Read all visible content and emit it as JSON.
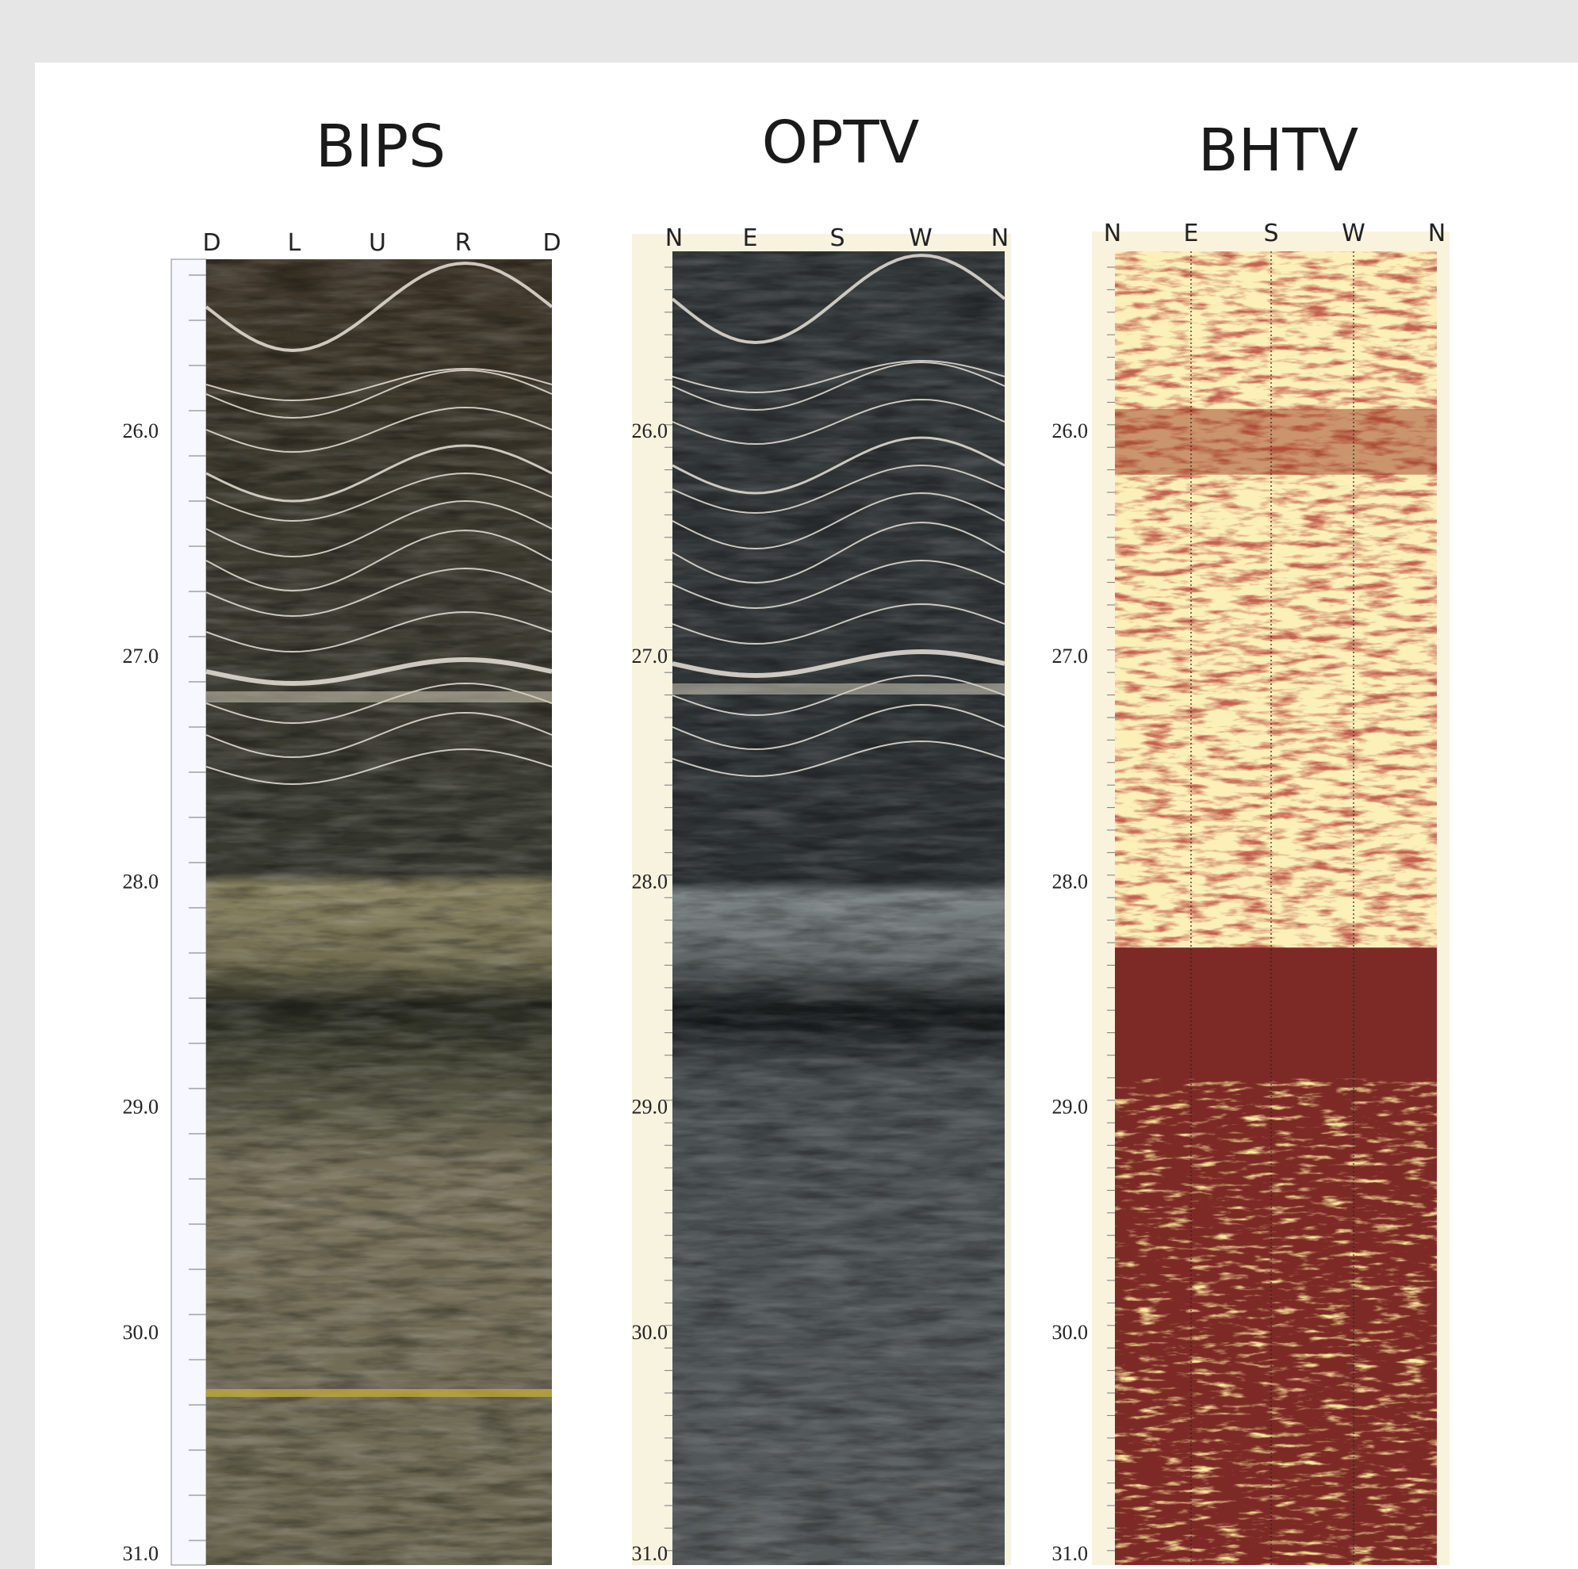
{
  "panels": [
    {
      "title": "BIPS",
      "azimuth_labels": [
        "D",
        "L",
        "U",
        "R",
        "D"
      ],
      "depth_labels": [
        "26.0",
        "27.0",
        "28.0",
        "29.0",
        "30.0",
        "31.0"
      ]
    },
    {
      "title": "OPTV",
      "azimuth_labels": [
        "N",
        "E",
        "S",
        "W",
        "N"
      ],
      "depth_labels": [
        "26.0",
        "27.0",
        "28.0",
        "29.0",
        "30.0",
        "31.0"
      ]
    },
    {
      "title": "BHTV",
      "azimuth_labels": [
        "N",
        "E",
        "S",
        "W",
        "N"
      ],
      "depth_labels": [
        "26.0",
        "27.0",
        "28.0",
        "29.0",
        "30.0",
        "31.0"
      ]
    }
  ]
}
